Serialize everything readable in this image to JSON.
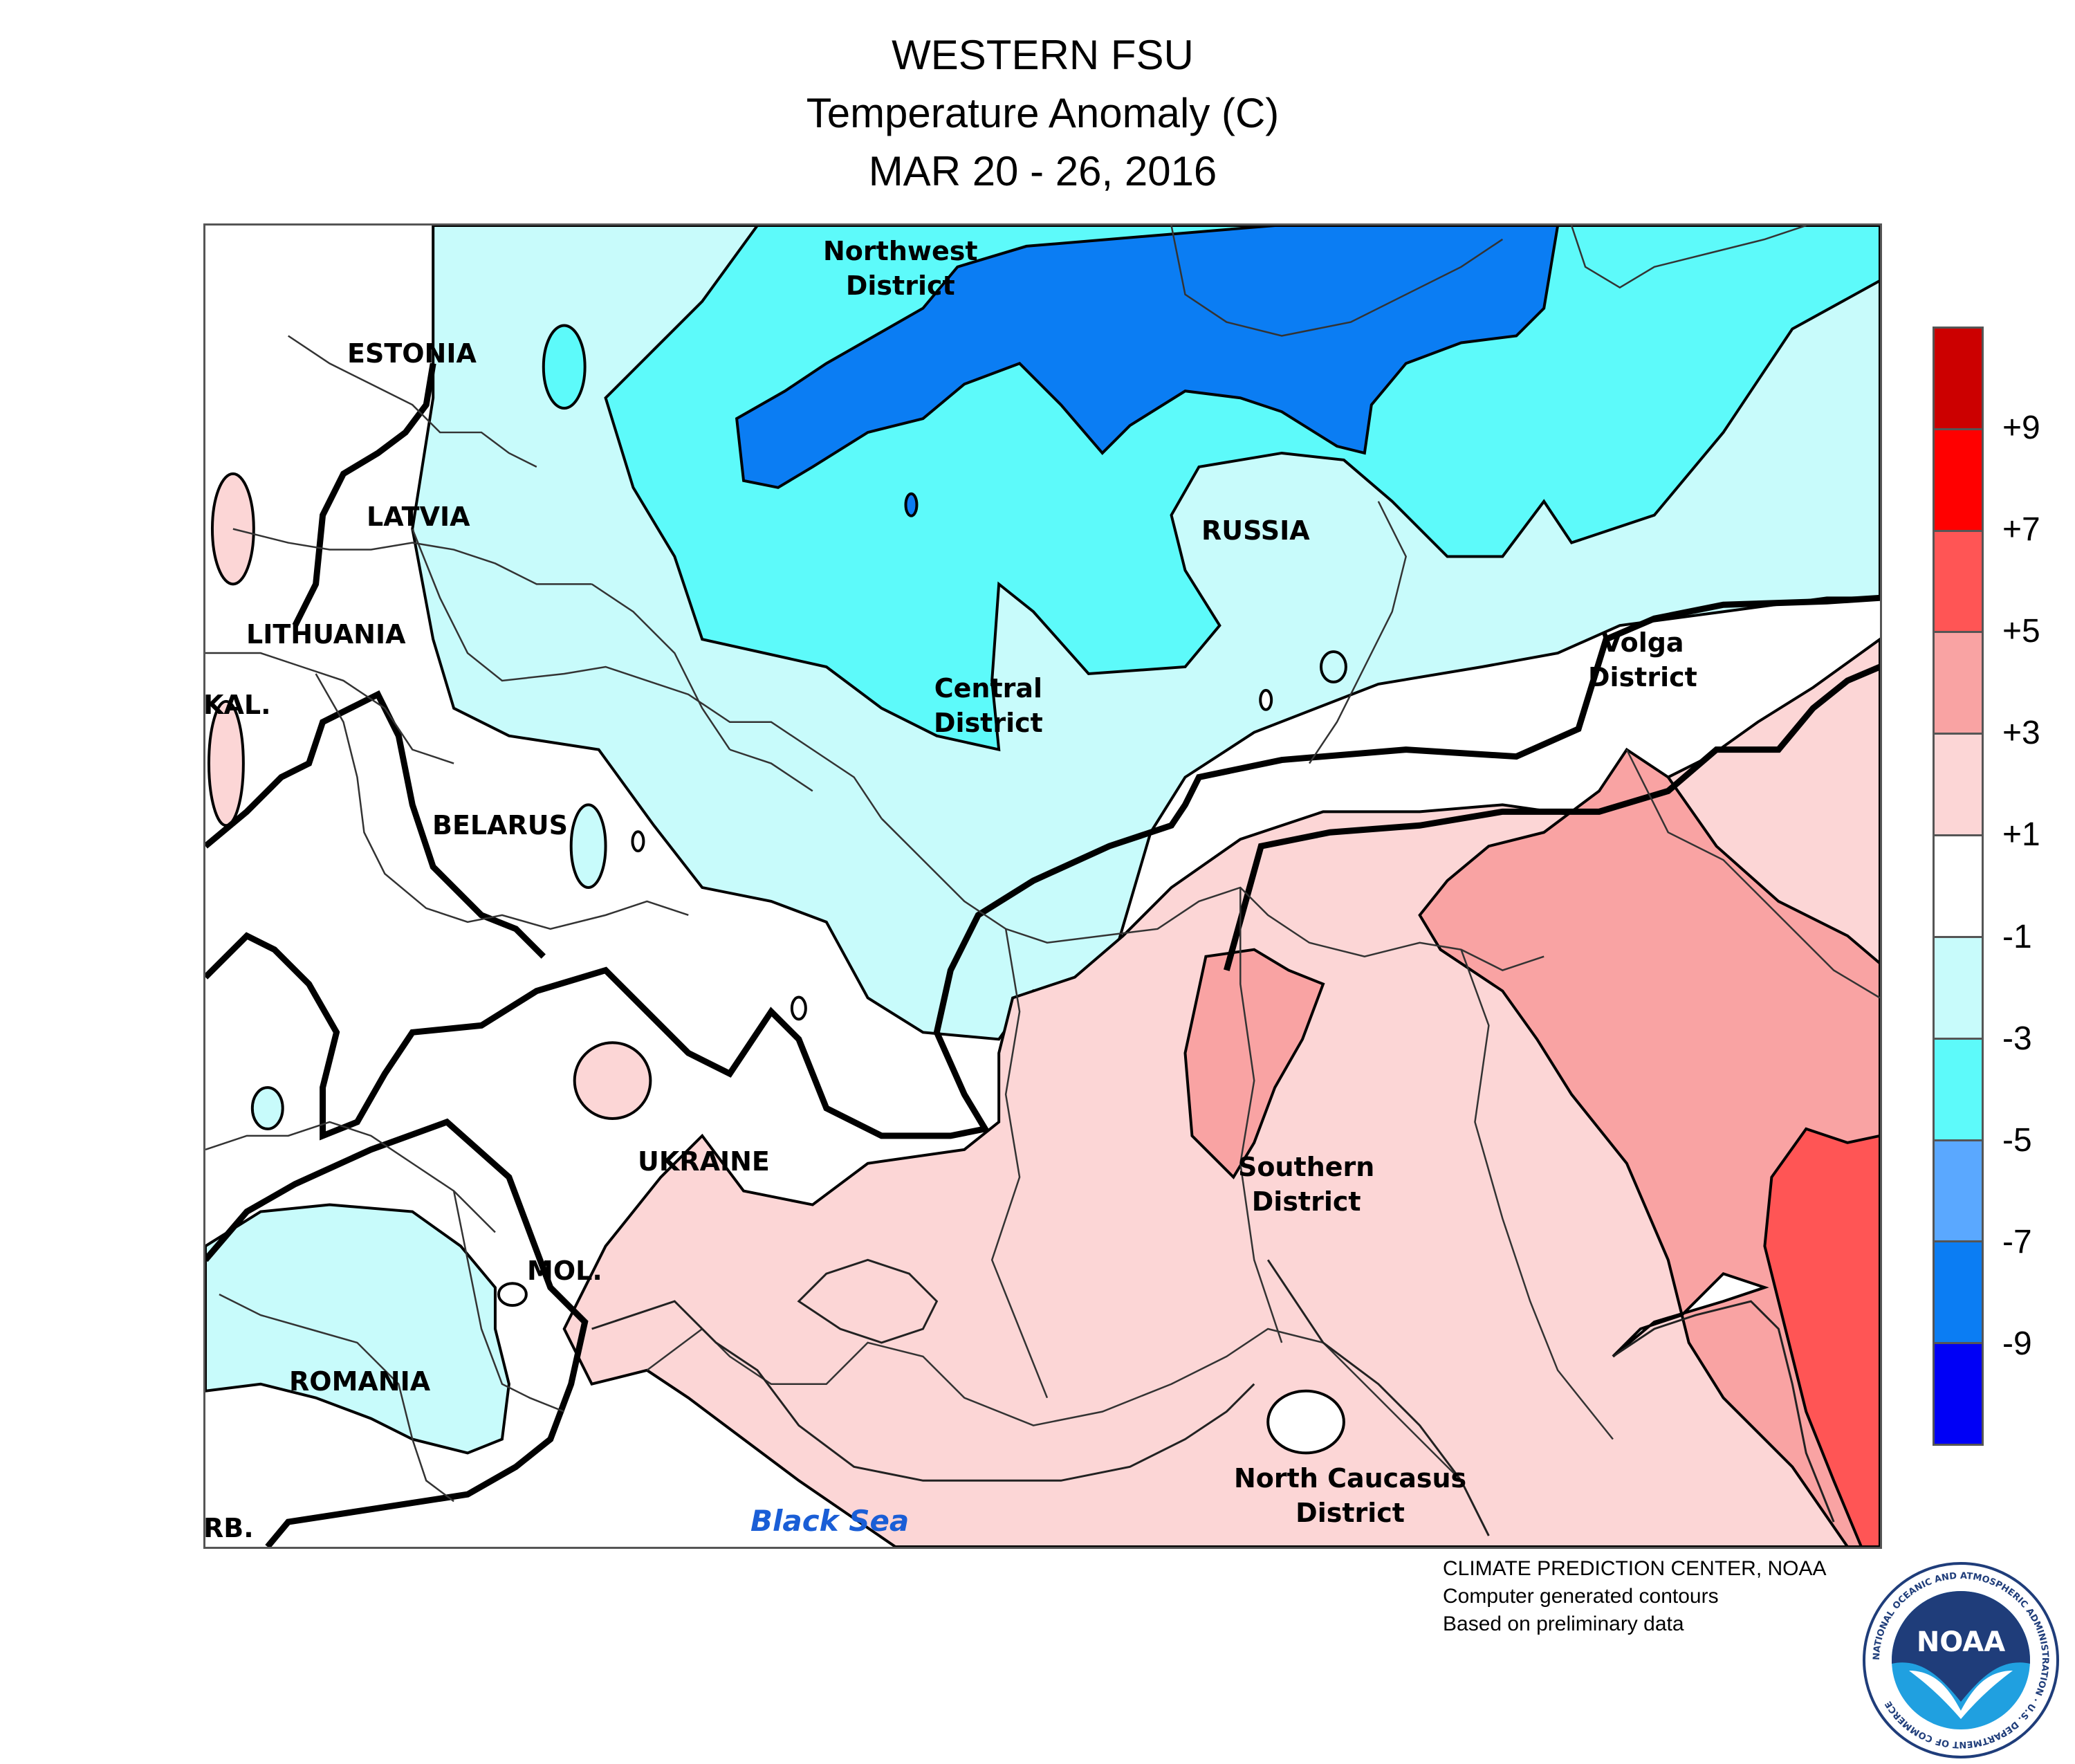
{
  "title": {
    "line1": "WESTERN FSU",
    "line2": "Temperature Anomaly (C)",
    "line3": "MAR 20 - 26, 2016"
  },
  "labels": {
    "estonia": "ESTONIA",
    "latvia": "LATVIA",
    "lithuania": "LITHUANIA",
    "kal": "KAL.",
    "belarus": "BELARUS",
    "ukraine": "UKRAINE",
    "mol": "MOL.",
    "romania": "ROMANIA",
    "serb": "RB.",
    "russia": "RUSSIA",
    "northwest_1": "Northwest",
    "northwest_2": "District",
    "central_1": "Central",
    "central_2": "District",
    "volga_1": "Volga",
    "volga_2": "District",
    "southern_1": "Southern",
    "southern_2": "District",
    "caucasus_1": "North Caucasus",
    "caucasus_2": "District",
    "black_sea": "Black Sea"
  },
  "legend": {
    "colors": [
      "#cc0000",
      "#ff0000",
      "#ff5555",
      "#f9a3a3",
      "#fcd6d6",
      "#ffffff",
      "#c8fbfb",
      "#5dfafa",
      "#5aa8ff",
      "#0b7df3",
      "#0000f6"
    ],
    "ticks": [
      "+9",
      "+7",
      "+5",
      "+3",
      "+1",
      "-1",
      "-3",
      "-5",
      "-7",
      "-9"
    ]
  },
  "credits": {
    "line1": "CLIMATE PREDICTION CENTER, NOAA",
    "line2": "Computer generated contours",
    "line3": "Based on preliminary data"
  },
  "logo": {
    "text": "NOAA",
    "ring_text": "NATIONAL OCEANIC AND ATMOSPHERIC ADMINISTRATION · U.S. DEPARTMENT OF COMMERCE"
  }
}
